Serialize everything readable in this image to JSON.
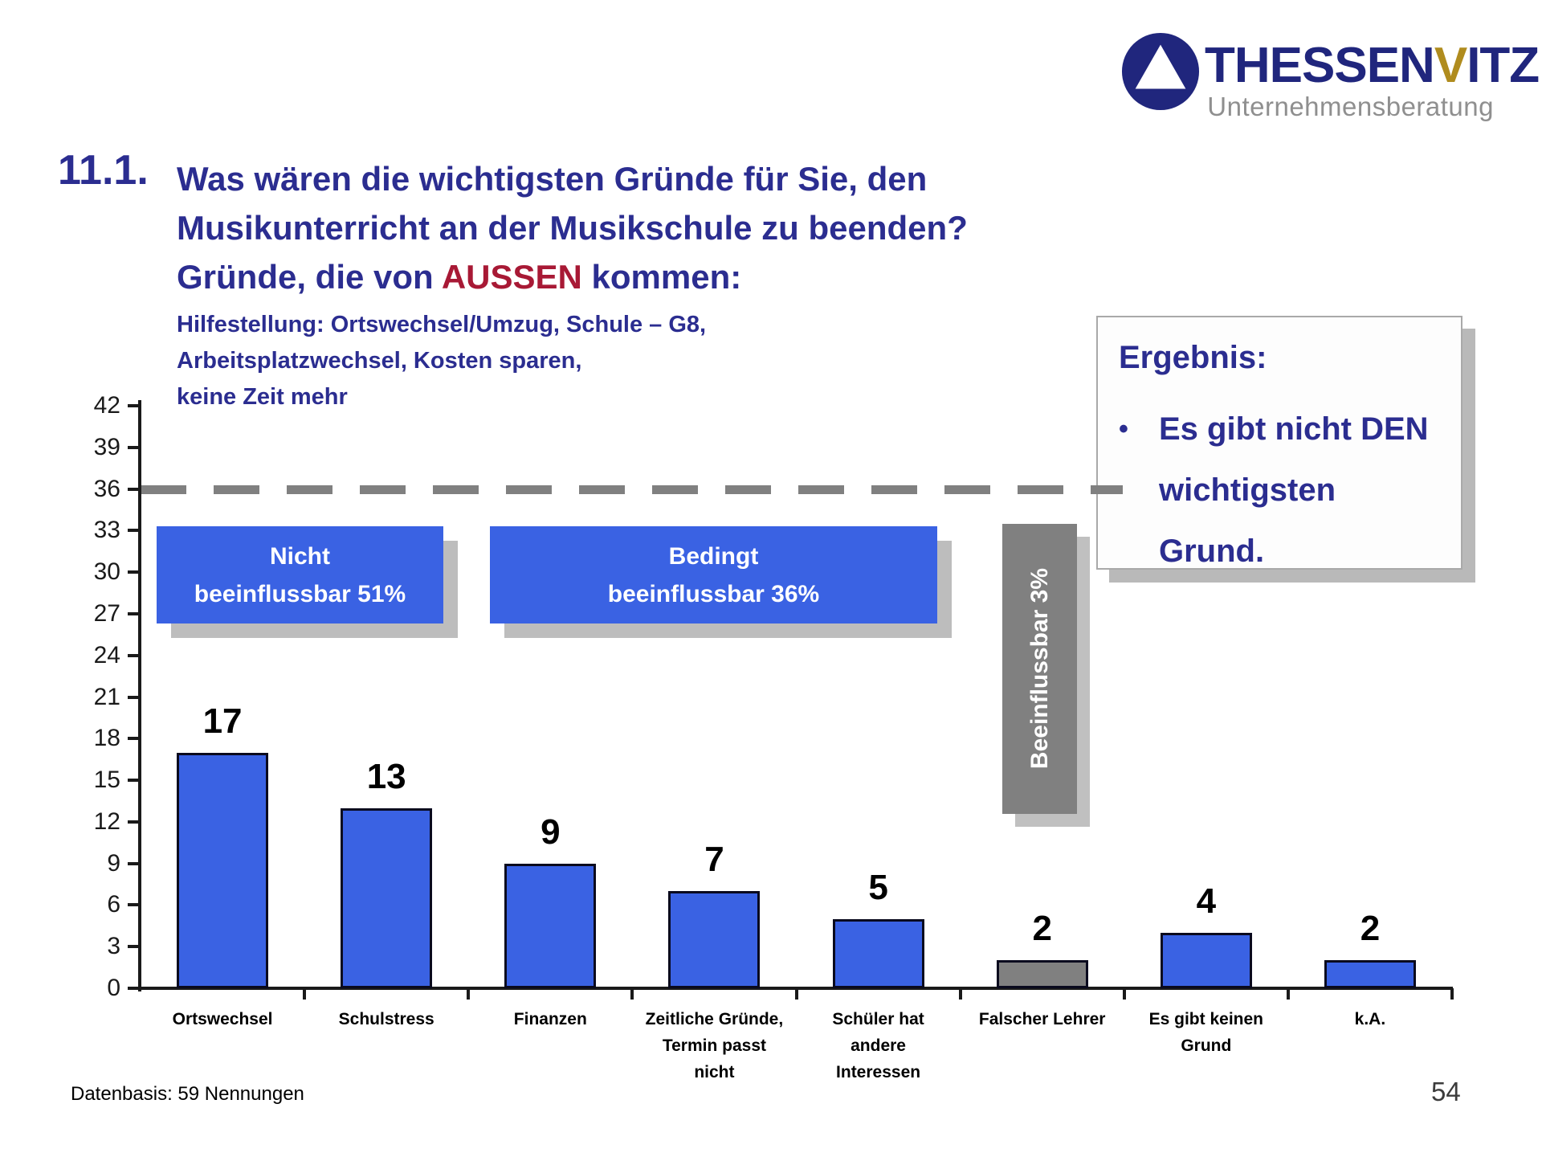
{
  "logo": {
    "name_prefix": "THESSEN",
    "name_highlight": "V",
    "name_suffix": "ITZ",
    "subtitle": "Unternehmensberatung"
  },
  "title": {
    "number": "11.1.",
    "line1": "Was wären die wichtigsten Gründe für Sie, den",
    "line2": "Musikunterricht an der Musikschule zu beenden?",
    "line3_prefix": "Gründe, die von ",
    "line3_highlight": "AUSSEN",
    "line3_suffix": " kommen:",
    "hint_line1": "Hilfestellung: Ortswechsel/Umzug, Schule – G8,",
    "hint_line2": "Arbeitsplatzwechsel, Kosten sparen,",
    "hint_line3": "keine Zeit mehr"
  },
  "result_box": {
    "heading": "Ergebnis:",
    "bullet_marker": "•",
    "bullet": "Es gibt nicht DEN wichtigsten Grund."
  },
  "chart_data": {
    "type": "bar",
    "categories": [
      "Ortswechsel",
      "Schulstress",
      "Finanzen",
      "Zeitliche Gründe, Termin passt nicht",
      "Schüler hat andere Interessen",
      "Falscher Lehrer",
      "Es gibt keinen Grund",
      "k.A."
    ],
    "category_lines": [
      [
        "Ortswechsel"
      ],
      [
        "Schulstress"
      ],
      [
        "Finanzen"
      ],
      [
        "Zeitliche Gründe,",
        "Termin passt",
        "nicht"
      ],
      [
        "Schüler hat",
        "andere",
        "Interessen"
      ],
      [
        "Falscher Lehrer"
      ],
      [
        "Es gibt keinen",
        "Grund"
      ],
      [
        "k.A."
      ]
    ],
    "values": [
      17,
      13,
      9,
      7,
      5,
      2,
      4,
      2
    ],
    "bar_color_keys": [
      "blue",
      "blue",
      "blue",
      "blue",
      "blue",
      "gray",
      "blue",
      "blue"
    ],
    "ylim": [
      0,
      42
    ],
    "ytick_step": 3,
    "grid": false,
    "legend": false,
    "reference_line": {
      "value": 36,
      "style": "dashed"
    },
    "annotations": {
      "box1_line1": "Nicht",
      "box1_line2": "beeinflussbar 51%",
      "box2_line1": "Bedingt",
      "box2_line2": "beeinflussbar 36%",
      "vertical_bar_label": "Beeinflussbar 3%"
    }
  },
  "footer": {
    "datasource": "Datenbasis: 59 Nennungen",
    "page_number": "54"
  },
  "colors": {
    "accent_navy": "#2b2d90",
    "highlight_red": "#a81935",
    "bar_blue": "#3a62e3",
    "bar_gray": "#808080",
    "annotation_blue": "#3a62e3",
    "dash_gray": "#808080",
    "logo_navy": "#20267d",
    "logo_gold": "#b08c1e",
    "logo_gray": "#8f8f8f"
  }
}
